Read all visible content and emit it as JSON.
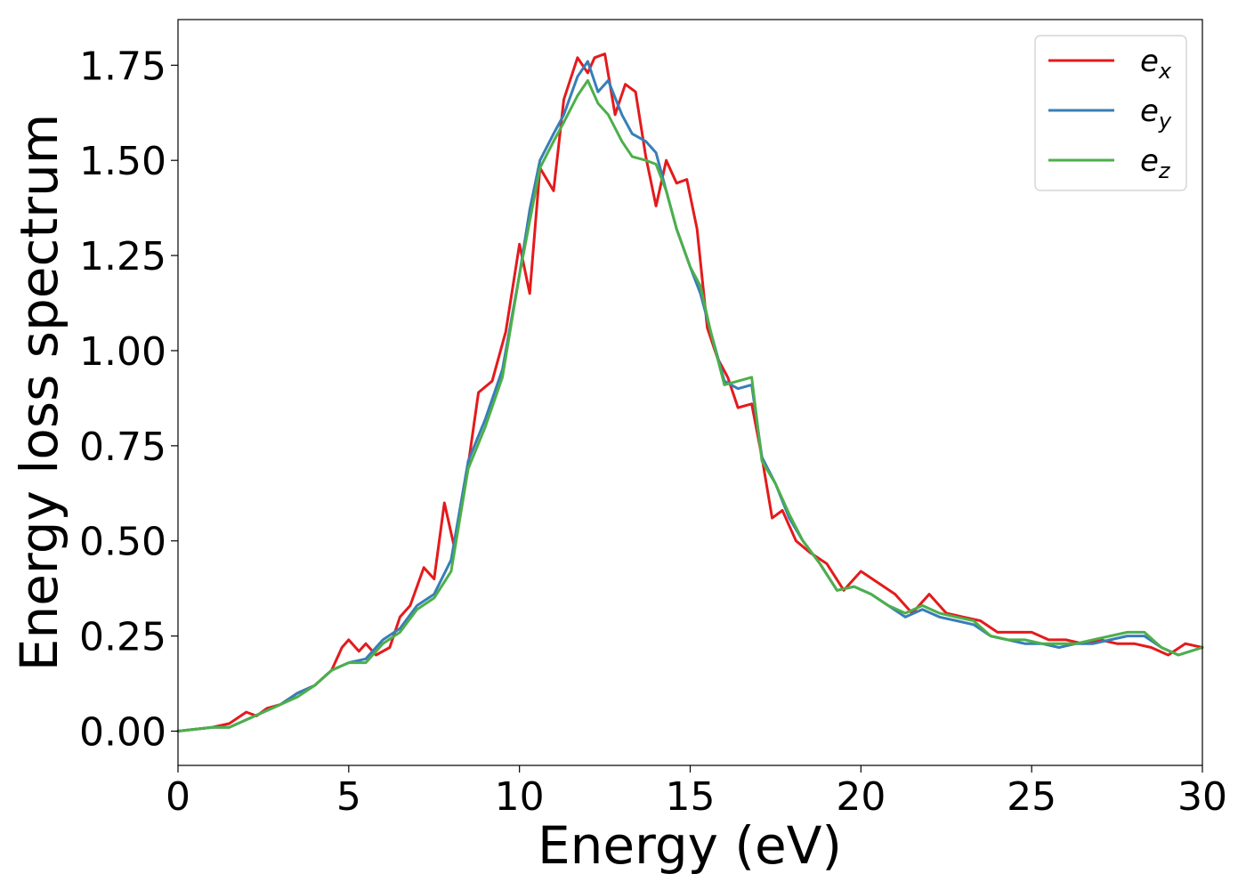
{
  "chart_data": {
    "type": "line",
    "xlabel": "Energy (eV)",
    "ylabel": "Energy loss spectrum",
    "xlim": [
      0,
      30
    ],
    "ylim": [
      -0.09,
      1.87
    ],
    "xticks": [
      0,
      5,
      10,
      15,
      20,
      25,
      30
    ],
    "xtick_labels": [
      "0",
      "5",
      "10",
      "15",
      "20",
      "25",
      "30"
    ],
    "yticks": [
      0.0,
      0.25,
      0.5,
      0.75,
      1.0,
      1.25,
      1.5,
      1.75
    ],
    "ytick_labels": [
      "0.00",
      "0.25",
      "0.50",
      "0.75",
      "1.00",
      "1.25",
      "1.50",
      "1.75"
    ],
    "grid": false,
    "legend_position": "top-right",
    "series": [
      {
        "name": "e",
        "subscript": "x",
        "color": "#e41a1c",
        "x": [
          0,
          1,
          1.5,
          2,
          2.3,
          2.6,
          3,
          3.5,
          4,
          4.5,
          4.8,
          5,
          5.3,
          5.5,
          5.8,
          6.2,
          6.5,
          6.8,
          7.2,
          7.5,
          7.8,
          8.1,
          8.5,
          8.8,
          9.2,
          9.6,
          10,
          10.3,
          10.6,
          11,
          11.3,
          11.7,
          12,
          12.2,
          12.5,
          12.8,
          13.1,
          13.4,
          13.7,
          14,
          14.3,
          14.6,
          14.9,
          15.2,
          15.5,
          15.8,
          16.1,
          16.4,
          16.8,
          17.1,
          17.4,
          17.7,
          18.1,
          18.5,
          19,
          19.5,
          20,
          20.5,
          21,
          21.5,
          22,
          22.5,
          23,
          23.5,
          24,
          24.5,
          25,
          25.5,
          26,
          26.5,
          27,
          27.5,
          28,
          28.5,
          29,
          29.5,
          30
        ],
        "values": [
          0.0,
          0.01,
          0.02,
          0.05,
          0.04,
          0.06,
          0.07,
          0.1,
          0.12,
          0.16,
          0.22,
          0.24,
          0.21,
          0.23,
          0.2,
          0.22,
          0.3,
          0.33,
          0.43,
          0.4,
          0.6,
          0.48,
          0.7,
          0.89,
          0.92,
          1.05,
          1.28,
          1.15,
          1.48,
          1.42,
          1.66,
          1.77,
          1.73,
          1.77,
          1.78,
          1.62,
          1.7,
          1.68,
          1.51,
          1.38,
          1.5,
          1.44,
          1.45,
          1.32,
          1.06,
          0.98,
          0.93,
          0.85,
          0.86,
          0.72,
          0.56,
          0.58,
          0.5,
          0.47,
          0.44,
          0.37,
          0.42,
          0.39,
          0.36,
          0.31,
          0.36,
          0.31,
          0.3,
          0.29,
          0.26,
          0.26,
          0.26,
          0.24,
          0.24,
          0.23,
          0.24,
          0.23,
          0.23,
          0.22,
          0.2,
          0.23,
          0.22
        ]
      },
      {
        "name": "e",
        "subscript": "y",
        "color": "#377eb8",
        "x": [
          0,
          1,
          1.5,
          2,
          2.5,
          3,
          3.5,
          4,
          4.5,
          5,
          5.5,
          6,
          6.5,
          7,
          7.5,
          8,
          8.5,
          9,
          9.5,
          10,
          10.3,
          10.6,
          11,
          11.3,
          11.7,
          12,
          12.3,
          12.6,
          13,
          13.3,
          13.7,
          14,
          14.3,
          14.6,
          15,
          15.3,
          15.6,
          16,
          16.4,
          16.8,
          17.1,
          17.5,
          17.9,
          18.3,
          18.8,
          19.3,
          19.8,
          20.3,
          20.8,
          21.3,
          21.8,
          22.3,
          22.8,
          23.3,
          23.8,
          24.3,
          24.8,
          25.3,
          25.8,
          26.3,
          26.8,
          27.3,
          27.8,
          28.3,
          28.8,
          29.3,
          30
        ],
        "values": [
          0.0,
          0.01,
          0.01,
          0.03,
          0.05,
          0.07,
          0.1,
          0.12,
          0.16,
          0.18,
          0.19,
          0.24,
          0.27,
          0.33,
          0.36,
          0.45,
          0.71,
          0.82,
          0.95,
          1.2,
          1.37,
          1.5,
          1.57,
          1.62,
          1.72,
          1.76,
          1.68,
          1.71,
          1.62,
          1.57,
          1.55,
          1.52,
          1.42,
          1.32,
          1.22,
          1.15,
          1.05,
          0.92,
          0.9,
          0.91,
          0.72,
          0.65,
          0.56,
          0.5,
          0.44,
          0.37,
          0.38,
          0.36,
          0.33,
          0.3,
          0.32,
          0.3,
          0.29,
          0.28,
          0.25,
          0.24,
          0.23,
          0.23,
          0.22,
          0.23,
          0.23,
          0.24,
          0.25,
          0.25,
          0.22,
          0.2,
          0.22
        ]
      },
      {
        "name": "e",
        "subscript": "z",
        "color": "#4daf4a",
        "x": [
          0,
          1,
          1.5,
          2,
          2.5,
          3,
          3.5,
          4,
          4.5,
          5,
          5.5,
          6,
          6.5,
          7,
          7.5,
          8,
          8.5,
          9,
          9.5,
          10,
          10.3,
          10.6,
          11,
          11.3,
          11.7,
          12,
          12.3,
          12.6,
          13,
          13.3,
          13.7,
          14,
          14.3,
          14.6,
          15,
          15.3,
          15.6,
          16,
          16.4,
          16.8,
          17.1,
          17.5,
          17.9,
          18.3,
          18.8,
          19.3,
          19.8,
          20.3,
          20.8,
          21.3,
          21.8,
          22.3,
          22.8,
          23.3,
          23.8,
          24.3,
          24.8,
          25.3,
          25.8,
          26.3,
          26.8,
          27.3,
          27.8,
          28.3,
          28.8,
          29.3,
          30
        ],
        "values": [
          0.0,
          0.01,
          0.01,
          0.03,
          0.05,
          0.07,
          0.09,
          0.12,
          0.16,
          0.18,
          0.18,
          0.23,
          0.26,
          0.32,
          0.35,
          0.42,
          0.69,
          0.8,
          0.93,
          1.2,
          1.34,
          1.48,
          1.55,
          1.6,
          1.67,
          1.71,
          1.65,
          1.62,
          1.55,
          1.51,
          1.5,
          1.49,
          1.42,
          1.32,
          1.22,
          1.17,
          1.05,
          0.91,
          0.92,
          0.93,
          0.71,
          0.65,
          0.57,
          0.5,
          0.44,
          0.37,
          0.38,
          0.36,
          0.33,
          0.31,
          0.33,
          0.31,
          0.3,
          0.29,
          0.25,
          0.24,
          0.24,
          0.23,
          0.23,
          0.23,
          0.24,
          0.25,
          0.26,
          0.26,
          0.22,
          0.2,
          0.22
        ]
      }
    ]
  }
}
